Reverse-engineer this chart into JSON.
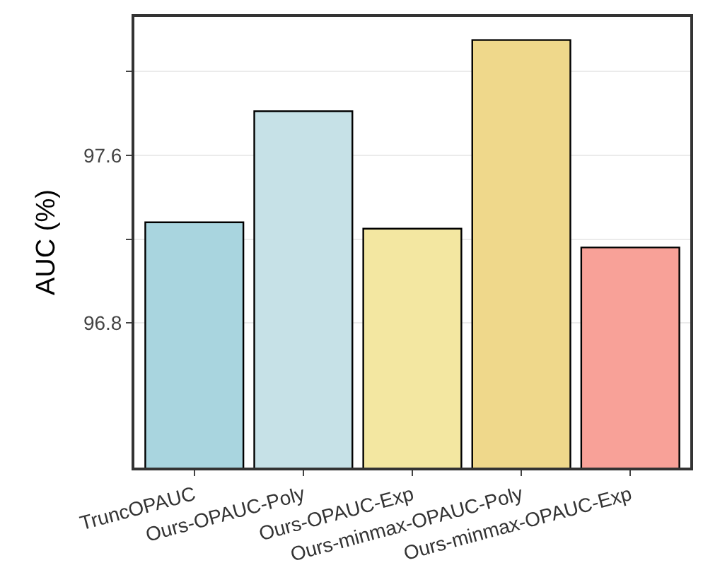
{
  "chart_data": {
    "type": "bar",
    "ylabel": "AUC (%)",
    "categories": [
      "TruncOPAUC",
      "Ours-OPAUC-Poly",
      "Ours-OPAUC-Exp",
      "Ours-minmax-OPAUC-Poly",
      "Ours-minmax-OPAUC-Exp"
    ],
    "values": [
      97.28,
      97.81,
      97.25,
      98.15,
      97.16
    ],
    "colors": [
      "#a9d5df",
      "#c6e1e7",
      "#f3e7a1",
      "#efd88b",
      "#f8a198"
    ],
    "ylim": [
      96.11,
      98.26
    ],
    "yticks": [
      96.8,
      {
        "value": 97.2,
        "label": null
      },
      97.6,
      {
        "value": 98.0,
        "label": null
      }
    ],
    "grid": "y",
    "legend": false
  }
}
